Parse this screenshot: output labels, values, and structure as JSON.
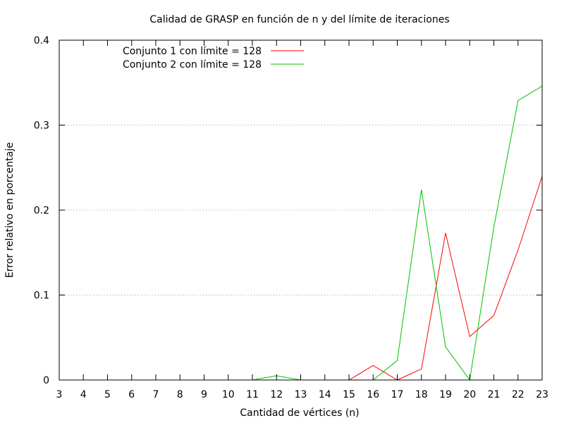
{
  "chart_data": {
    "type": "line",
    "title": "Calidad de GRASP en función de n y del límite de iteraciones",
    "xlabel": "Cantidad de vértices (n)",
    "ylabel": "Error relativo en porcentaje",
    "xlim": [
      3,
      23
    ],
    "ylim": [
      0,
      0.4
    ],
    "xticks": [
      3,
      4,
      5,
      6,
      7,
      8,
      9,
      10,
      11,
      12,
      13,
      14,
      15,
      16,
      17,
      18,
      19,
      20,
      21,
      22,
      23
    ],
    "yticks": [
      0,
      0.1,
      0.2,
      0.3,
      0.4
    ],
    "ytick_labels": [
      "0",
      "0.1",
      "0.2",
      "0.3",
      "0.4"
    ],
    "grid": "horizontal dotted",
    "legend_position": "top-left",
    "series": [
      {
        "name": "Conjunto 1 con límite = 128",
        "color": "#ff0000",
        "x": [
          15,
          16,
          17,
          18,
          19,
          20,
          21,
          22,
          23
        ],
        "y": [
          0,
          0.017,
          0,
          0.013,
          0.173,
          0.051,
          0.076,
          0.153,
          0.24
        ]
      },
      {
        "name": "Conjunto 2 con límite = 128",
        "color": "#00c000",
        "x": [
          11,
          12,
          13,
          14,
          15,
          16,
          17,
          18,
          19,
          20,
          21,
          22,
          23
        ],
        "y": [
          0,
          0.005,
          0,
          0,
          0,
          0,
          0.023,
          0.224,
          0.039,
          0,
          0.18,
          0.329,
          0.346
        ]
      }
    ]
  }
}
